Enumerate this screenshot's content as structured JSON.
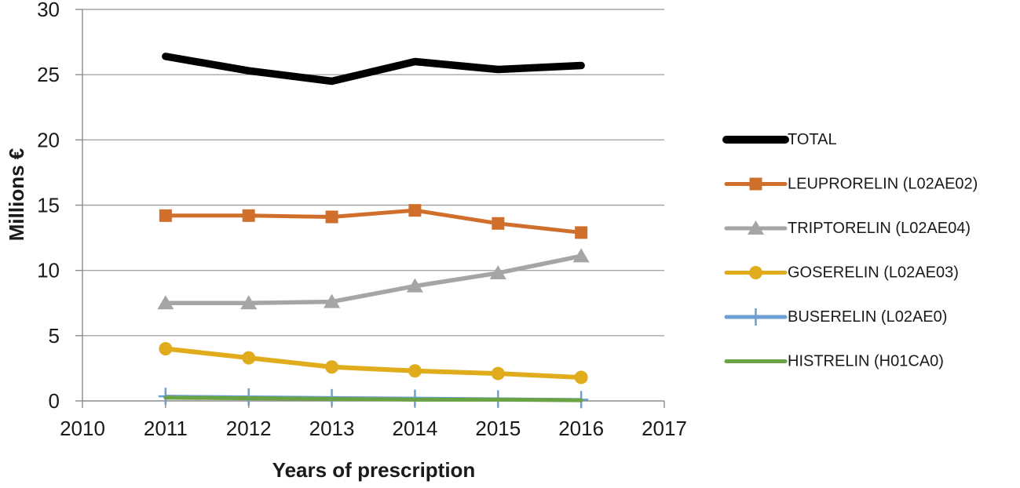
{
  "chart_data": {
    "type": "line",
    "title": "",
    "xlabel": "Years of prescription",
    "ylabel": "Millions €",
    "x": [
      2011,
      2012,
      2013,
      2014,
      2015,
      2016
    ],
    "xlim": [
      2010,
      2017
    ],
    "ylim": [
      0,
      30
    ],
    "x_ticks": [
      "2010",
      "2011",
      "2012",
      "2013",
      "2014",
      "2015",
      "2016",
      "2017"
    ],
    "y_ticks": [
      "0",
      "5",
      "10",
      "15",
      "20",
      "25",
      "30"
    ],
    "grid": "horizontal",
    "grid_color": "#A6A6A6",
    "axis_color": "#8C8C8C",
    "legend_position": "right",
    "series": [
      {
        "name": "TOTAL",
        "color": "#000000",
        "marker": "none",
        "line_width": 9.5,
        "values": [
          26.4,
          25.3,
          24.5,
          26.0,
          25.4,
          25.7
        ]
      },
      {
        "name": "LEUPRORELIN (L02AE02)",
        "color": "#D06F2C",
        "marker": "square",
        "line_width": 5,
        "values": [
          14.2,
          14.2,
          14.1,
          14.6,
          13.6,
          12.9
        ]
      },
      {
        "name": "TRIPTORELIN (L02AE04)",
        "color": "#A5A5A5",
        "marker": "triangle",
        "line_width": 5.5,
        "values": [
          7.5,
          7.5,
          7.6,
          8.8,
          9.8,
          11.1
        ]
      },
      {
        "name": "GOSERELIN (L02AE03)",
        "color": "#E1AC1B",
        "marker": "circle",
        "line_width": 6,
        "values": [
          4.0,
          3.3,
          2.6,
          2.3,
          2.1,
          1.8
        ]
      },
      {
        "name": "BUSERELIN (L02AE0)",
        "color": "#6C9FD3",
        "marker": "plus",
        "line_width": 4,
        "values": [
          0.35,
          0.3,
          0.25,
          0.2,
          0.15,
          0.1
        ]
      },
      {
        "name": "HISTRELIN (H01CA0)",
        "color": "#6AA343",
        "marker": "none",
        "line_width": 5,
        "values": [
          0.25,
          0.2,
          0.15,
          0.1,
          0.1,
          0.05
        ]
      }
    ]
  }
}
